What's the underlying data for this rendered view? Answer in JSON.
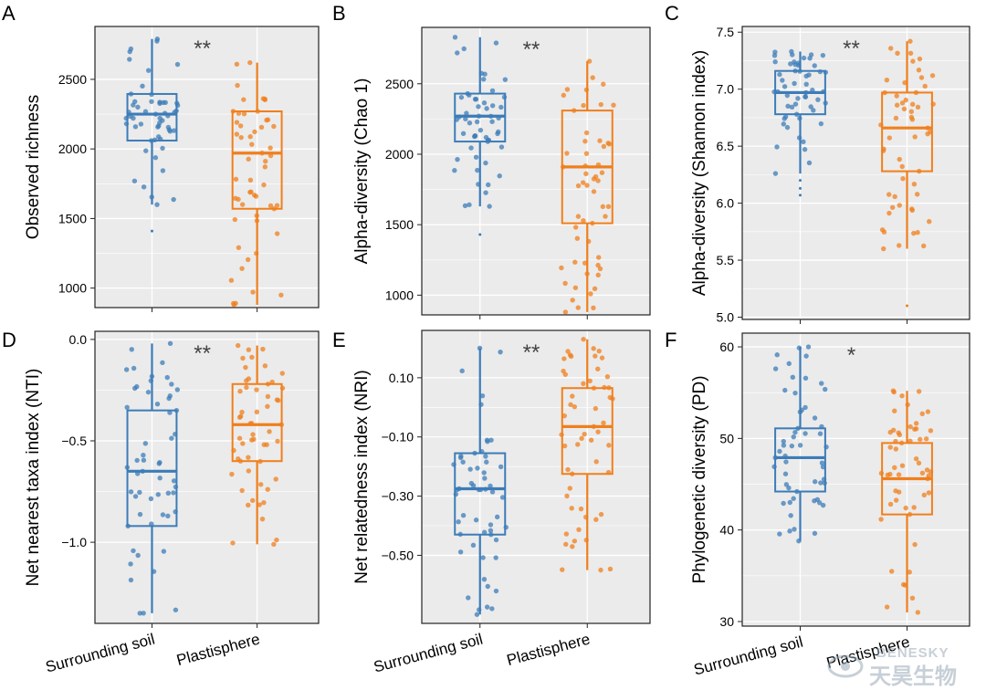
{
  "colors": {
    "soil": "#3C7CB8",
    "plastisphere": "#F07F1C",
    "panel_bg": "#EBEBEB",
    "grid": "#FFFFFF",
    "text": "#000000",
    "sig": "#444444"
  },
  "watermark": {
    "en": "BENESKY",
    "cn": "天昊生物"
  },
  "chart_data": [
    {
      "panel": "A",
      "type": "box",
      "ylabel": "Observed richness",
      "categories": [
        "Surrounding soil",
        "Plastisphere"
      ],
      "show_x_labels": false,
      "ylim": [
        860,
        2880
      ],
      "yticks": [
        1000,
        1500,
        2000,
        2500
      ],
      "ytick_labels": [
        "1000",
        "1500",
        "2000",
        "2500"
      ],
      "significance": "**",
      "series": [
        {
          "name": "Surrounding soil",
          "q1": 2060,
          "median": 2250,
          "q3": 2395,
          "whisker_low": 1600,
          "whisker_high": 2790,
          "n": 55,
          "outliers": [
            1410
          ],
          "seed": 11
        },
        {
          "name": "Plastisphere",
          "q1": 1570,
          "median": 1970,
          "q3": 2270,
          "whisker_low": 880,
          "whisker_high": 2620,
          "n": 55,
          "outliers": [],
          "seed": 12
        }
      ]
    },
    {
      "panel": "B",
      "type": "box",
      "ylabel": "Alpha-diversity (Chao 1)",
      "categories": [
        "Surrounding soil",
        "Plastisphere"
      ],
      "show_x_labels": false,
      "ylim": [
        860,
        2900
      ],
      "yticks": [
        1000,
        1500,
        2000,
        2500
      ],
      "ytick_labels": [
        "1000",
        "1500",
        "2000",
        "2500"
      ],
      "significance": "**",
      "series": [
        {
          "name": "Surrounding soil",
          "q1": 2090,
          "median": 2270,
          "q3": 2430,
          "whisker_low": 1630,
          "whisker_high": 2830,
          "n": 55,
          "outliers": [
            1430
          ],
          "seed": 21
        },
        {
          "name": "Plastisphere",
          "q1": 1510,
          "median": 1910,
          "q3": 2310,
          "whisker_low": 880,
          "whisker_high": 2660,
          "n": 55,
          "outliers": [],
          "seed": 22
        }
      ]
    },
    {
      "panel": "C",
      "type": "box",
      "ylabel": "Alpha-diversity (Shannon index)",
      "categories": [
        "Surrounding soil",
        "Plastisphere"
      ],
      "show_x_labels": false,
      "ylim": [
        4.98,
        7.55
      ],
      "yticks": [
        5.0,
        5.5,
        6.0,
        6.5,
        7.0,
        7.5
      ],
      "ytick_labels": [
        "5.0",
        "5.5",
        "6.0",
        "6.5",
        "7.0",
        "7.5"
      ],
      "significance": "**",
      "series": [
        {
          "name": "Surrounding soil",
          "q1": 6.78,
          "median": 6.97,
          "q3": 7.16,
          "whisker_low": 6.26,
          "whisker_high": 7.33,
          "n": 55,
          "outliers": [
            6.2,
            6.13,
            6.07
          ],
          "seed": 31
        },
        {
          "name": "Plastisphere",
          "q1": 6.28,
          "median": 6.66,
          "q3": 6.97,
          "whisker_low": 5.6,
          "whisker_high": 7.42,
          "n": 55,
          "outliers": [
            5.1
          ],
          "seed": 32
        }
      ]
    },
    {
      "panel": "D",
      "type": "box",
      "ylabel": "Net nearest taxa index (NTI)",
      "categories": [
        "Surrounding soil",
        "Plastisphere"
      ],
      "show_x_labels": true,
      "ylim": [
        -1.4,
        0.04
      ],
      "yticks": [
        -1.0,
        -0.5,
        0.0
      ],
      "ytick_labels": [
        "−1.0",
        "−0.5",
        "0.0"
      ],
      "significance": "**",
      "series": [
        {
          "name": "Surrounding soil",
          "q1": -0.92,
          "median": -0.65,
          "q3": -0.35,
          "whisker_low": -1.35,
          "whisker_high": -0.02,
          "n": 55,
          "outliers": [],
          "seed": 41
        },
        {
          "name": "Plastisphere",
          "q1": -0.6,
          "median": -0.42,
          "q3": -0.22,
          "whisker_low": -1.01,
          "whisker_high": -0.03,
          "n": 55,
          "outliers": [],
          "seed": 42
        }
      ]
    },
    {
      "panel": "E",
      "type": "box",
      "ylabel": "Net relatedness index (NRI)",
      "categories": [
        "Surrounding soil",
        "Plastisphere"
      ],
      "show_x_labels": true,
      "ylim": [
        -0.73,
        0.26
      ],
      "yticks": [
        -0.5,
        -0.3,
        -0.1,
        0.1
      ],
      "ytick_labels": [
        "−0.50",
        "−0.30",
        "−0.10",
        "0.10"
      ],
      "significance": "**",
      "series": [
        {
          "name": "Surrounding soil",
          "q1": -0.43,
          "median": -0.275,
          "q3": -0.155,
          "whisker_low": -0.7,
          "whisker_high": 0.2,
          "n": 55,
          "outliers": [],
          "seed": 51
        },
        {
          "name": "Plastisphere",
          "q1": -0.225,
          "median": -0.065,
          "q3": 0.065,
          "whisker_low": -0.55,
          "whisker_high": 0.23,
          "n": 55,
          "outliers": [],
          "seed": 52
        }
      ]
    },
    {
      "panel": "F",
      "type": "box",
      "ylabel": "Phylogenetic diversity (PD)",
      "categories": [
        "Surrounding soil",
        "Plastisphere"
      ],
      "show_x_labels": true,
      "ylim": [
        29.5,
        61.5
      ],
      "yticks": [
        30,
        40,
        50,
        60
      ],
      "ytick_labels": [
        "30",
        "40",
        "50",
        "60"
      ],
      "significance": "*",
      "series": [
        {
          "name": "Surrounding soil",
          "q1": 44.2,
          "median": 47.9,
          "q3": 51.1,
          "whisker_low": 38.8,
          "whisker_high": 60.0,
          "n": 55,
          "outliers": [],
          "seed": 61
        },
        {
          "name": "Plastisphere",
          "q1": 41.7,
          "median": 45.6,
          "q3": 49.5,
          "whisker_low": 31.0,
          "whisker_high": 55.2,
          "n": 55,
          "outliers": [],
          "seed": 62
        }
      ]
    }
  ]
}
